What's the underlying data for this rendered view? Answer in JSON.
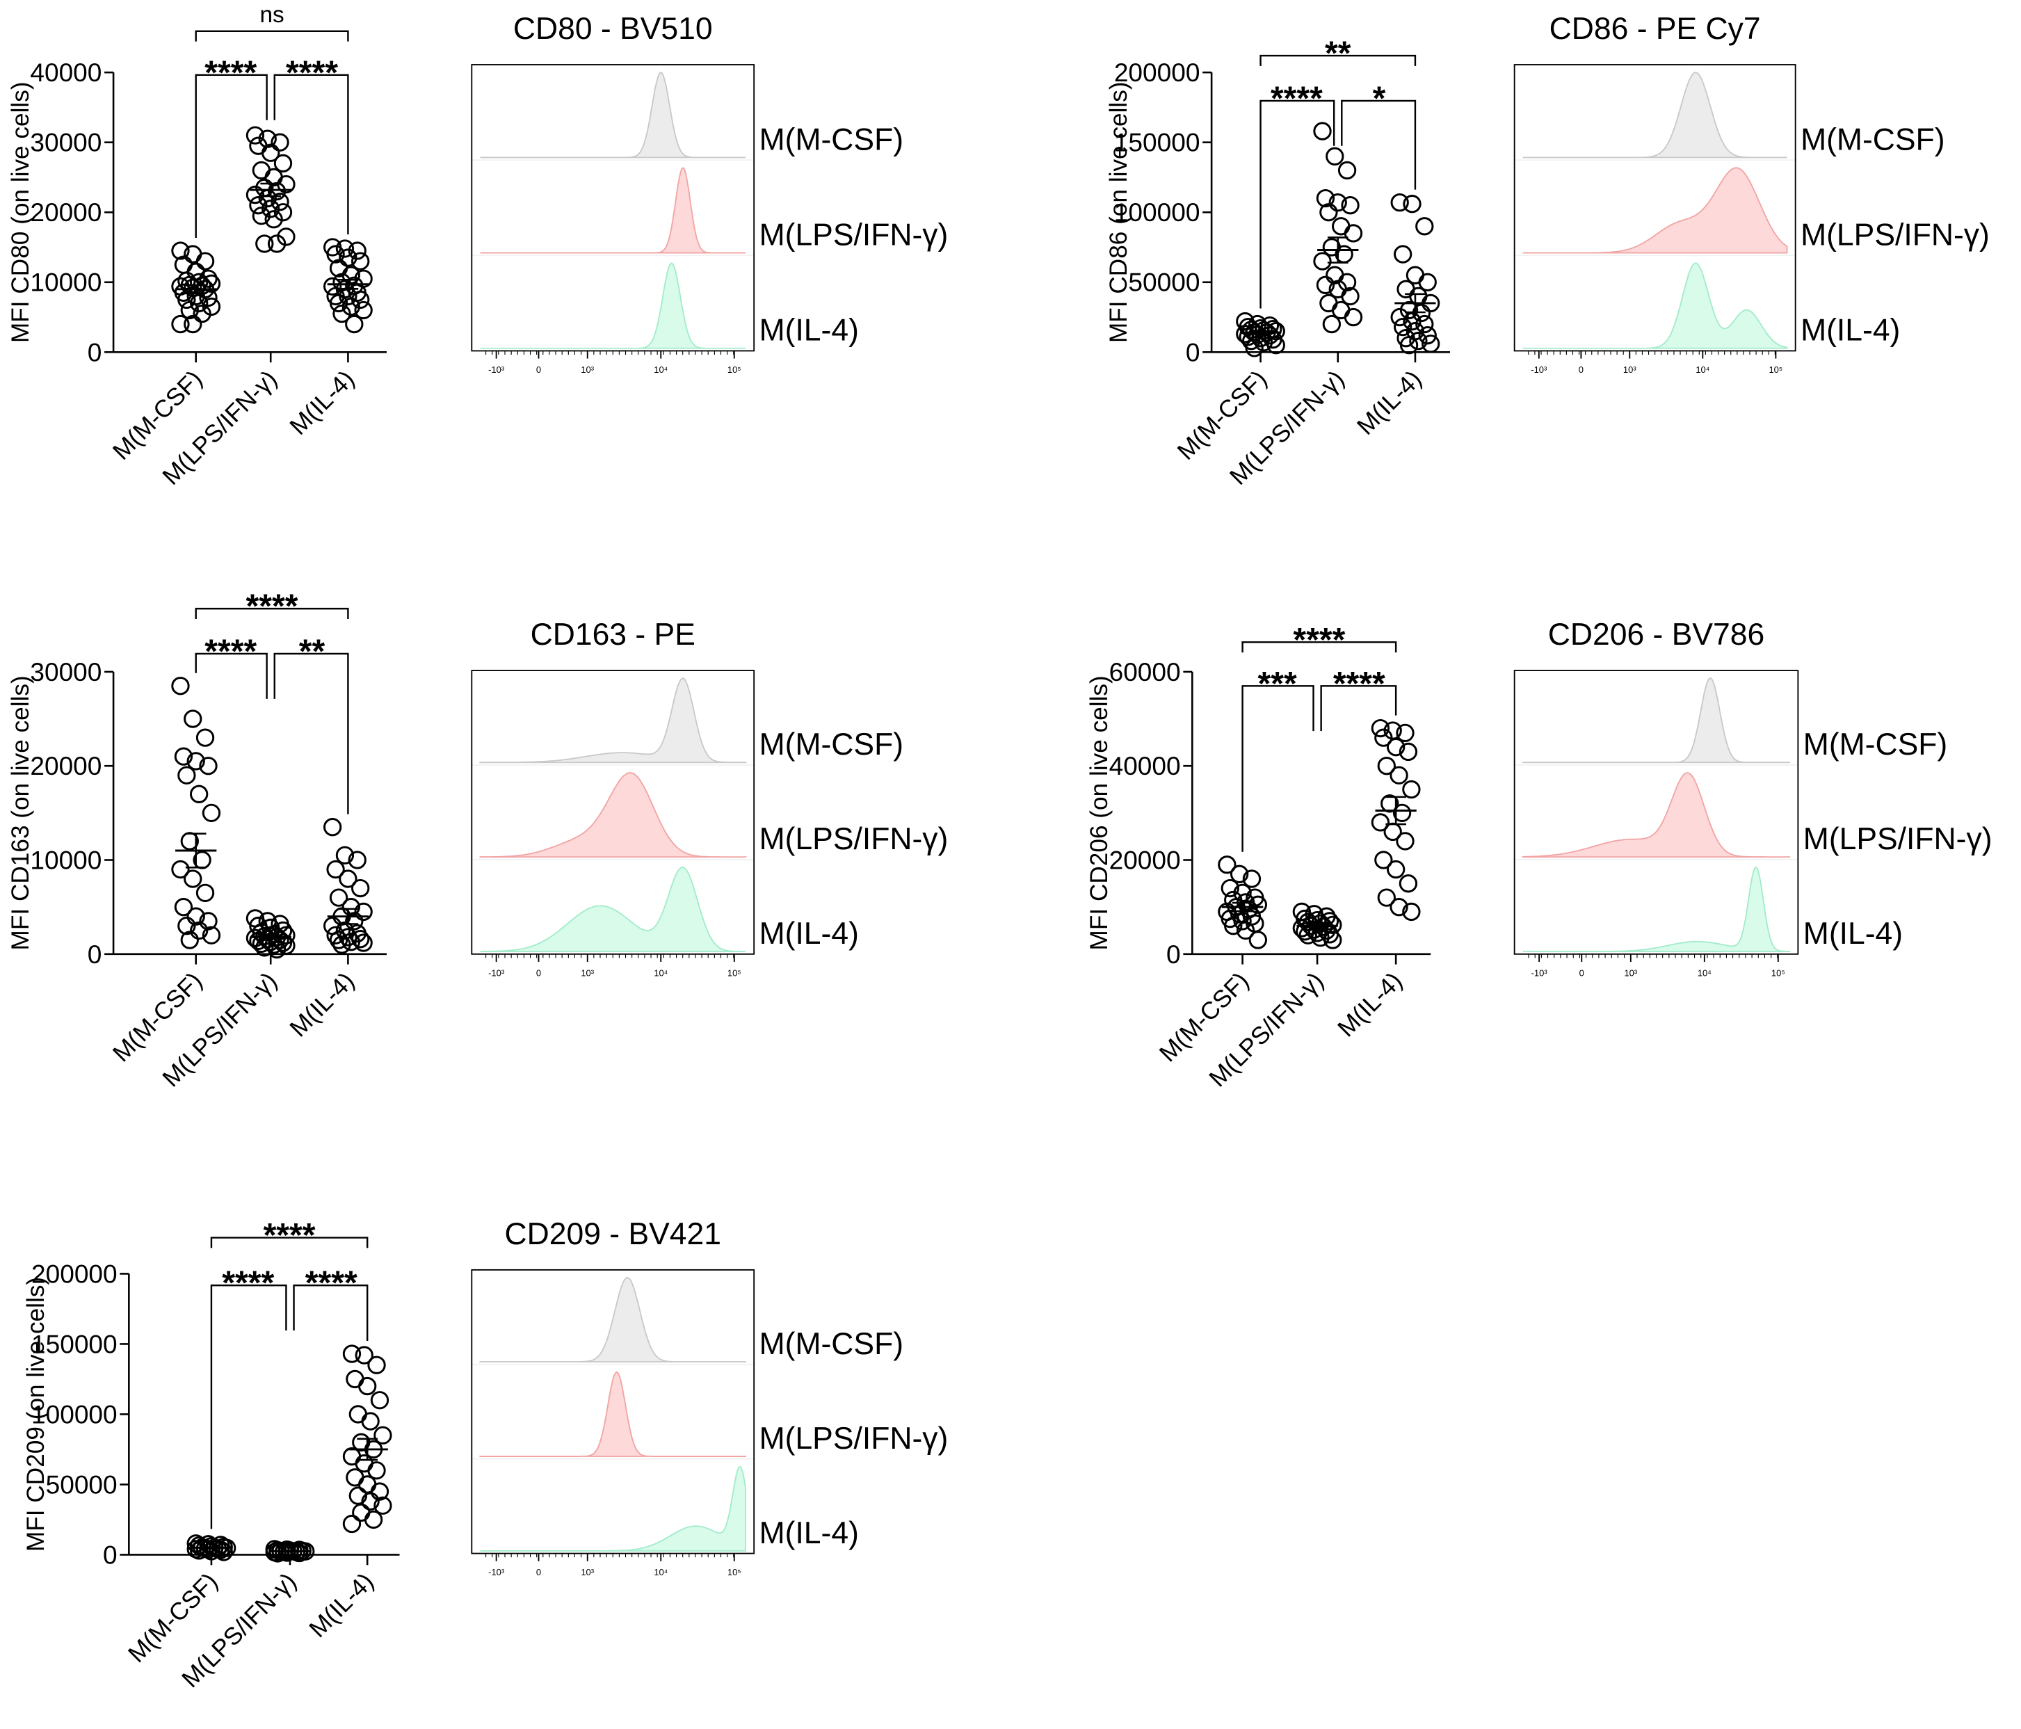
{
  "colors": {
    "mcsf_fill": "#ececec",
    "mcsf_line": "#c9c9c9",
    "lps_fill": "#fdd9d9",
    "lps_line": "#f2a5a5",
    "il4_fill": "#d8fbea",
    "il4_line": "#a3eccb",
    "ink": "#000000"
  },
  "chart_data": [
    {
      "type": "scatter",
      "ylabel": "MFI CD80 (on live cells)",
      "ylim": [
        0,
        40000
      ],
      "yticks": [
        0,
        10000,
        20000,
        30000,
        40000
      ],
      "categories": [
        "M(M-CSF)",
        "M(LPS/IFN-γ)",
        "M(IL-4)"
      ],
      "series": [
        {
          "values": [
            14500,
            14000,
            13000,
            12500,
            11500,
            10500,
            10200,
            10000,
            9800,
            9600,
            9500,
            9400,
            9200,
            9000,
            8500,
            8000,
            7800,
            7500,
            7000,
            6500,
            6000,
            5500,
            4000,
            4000
          ],
          "mean": 9000,
          "sem": 600
        },
        {
          "values": [
            31000,
            30500,
            30000,
            29500,
            28500,
            27000,
            26000,
            25000,
            24000,
            23500,
            23000,
            22500,
            22000,
            21500,
            21000,
            20500,
            20000,
            19500,
            19000,
            16500,
            15500,
            15500
          ],
          "mean": 23200,
          "sem": 900
        },
        {
          "values": [
            15000,
            14800,
            14500,
            14000,
            13500,
            13000,
            12000,
            11000,
            10500,
            10000,
            9500,
            9400,
            9000,
            8500,
            8000,
            8000,
            7500,
            7000,
            6500,
            6000,
            5500,
            4000
          ],
          "mean": 9700,
          "sem": 650
        }
      ],
      "comparisons": [
        {
          "pair": [
            0,
            2
          ],
          "label": "ns"
        },
        {
          "pair": [
            0,
            1
          ],
          "label": "****"
        },
        {
          "pair": [
            1,
            2
          ],
          "label": "****"
        }
      ]
    },
    {
      "type": "area",
      "title": "CD80 - BV510",
      "xscale": "biexponential",
      "xticks": [
        "-10³",
        "0",
        "10³",
        "10⁴",
        "10⁵"
      ],
      "rows": [
        {
          "label": "M(M-CSF)",
          "peaks": [
            {
              "at": 10000,
              "sd": 0.12,
              "h": 1
            }
          ]
        },
        {
          "label": "M(LPS/IFN-γ)",
          "peaks": [
            {
              "at": 20000,
              "sd": 0.1,
              "h": 1
            }
          ]
        },
        {
          "label": "M(IL-4)",
          "peaks": [
            {
              "at": 14000,
              "sd": 0.12,
              "h": 1
            }
          ]
        }
      ]
    },
    {
      "type": "scatter",
      "ylabel": "MFI CD86 (on live cells)",
      "ylim": [
        0,
        200000
      ],
      "yticks": [
        0,
        50000,
        100000,
        150000,
        200000
      ],
      "categories": [
        "M(M-CSF)",
        "M(LPS/IFN-γ)",
        "M(IL-4)"
      ],
      "series": [
        {
          "values": [
            22000,
            20000,
            19000,
            18000,
            17000,
            16500,
            16000,
            15500,
            15000,
            14000,
            14000,
            13000,
            12500,
            12000,
            11000,
            10000,
            9000,
            8000,
            7000,
            5000,
            3000
          ],
          "mean": 14000,
          "sem": 1000
        },
        {
          "values": [
            158000,
            140000,
            130000,
            110000,
            107000,
            105000,
            100000,
            90000,
            85000,
            75000,
            70000,
            65000,
            55000,
            50000,
            48000,
            45000,
            40000,
            35000,
            30000,
            25000,
            20000
          ],
          "mean": 73000,
          "sem": 9000
        },
        {
          "values": [
            107000,
            106000,
            90000,
            70000,
            55000,
            50000,
            45000,
            40000,
            35000,
            30000,
            28000,
            25000,
            22000,
            20000,
            18000,
            15000,
            12000,
            10000,
            8000,
            6000,
            5000
          ],
          "mean": 35000,
          "sem": 6500
        }
      ],
      "comparisons": [
        {
          "pair": [
            0,
            2
          ],
          "label": "**"
        },
        {
          "pair": [
            0,
            1
          ],
          "label": "****"
        },
        {
          "pair": [
            1,
            2
          ],
          "label": "*"
        }
      ]
    },
    {
      "type": "area",
      "title": "CD86 - PE Cy7",
      "xscale": "biexponential",
      "xticks": [
        "-10³",
        "0",
        "10³",
        "10⁴",
        "10⁵"
      ],
      "rows": [
        {
          "label": "M(M-CSF)",
          "peaks": [
            {
              "at": 8000,
              "sd": 0.2,
              "h": 1
            }
          ]
        },
        {
          "label": "M(LPS/IFN-γ)",
          "peaks": [
            {
              "at": 30000,
              "sd": 0.3,
              "h": 0.85
            },
            {
              "at": 5000,
              "sd": 0.35,
              "h": 0.3
            }
          ]
        },
        {
          "label": "M(IL-4)",
          "peaks": [
            {
              "at": 8000,
              "sd": 0.18,
              "h": 1
            },
            {
              "at": 40000,
              "sd": 0.2,
              "h": 0.45
            }
          ]
        }
      ]
    },
    {
      "type": "scatter",
      "ylabel": "MFI CD163 (on live cells)",
      "ylim": [
        0,
        30000
      ],
      "yticks": [
        0,
        10000,
        20000,
        30000
      ],
      "categories": [
        "M(M-CSF)",
        "M(LPS/IFN-γ)",
        "M(IL-4)"
      ],
      "series": [
        {
          "values": [
            28500,
            25000,
            23000,
            21000,
            20500,
            20000,
            19000,
            17000,
            15000,
            12000,
            10000,
            9000,
            8000,
            6500,
            5000,
            4000,
            3500,
            3000,
            2500,
            2000,
            1500
          ],
          "mean": 11000,
          "sem": 1800
        },
        {
          "values": [
            3800,
            3500,
            3200,
            3000,
            2800,
            2500,
            2300,
            2100,
            2000,
            1900,
            1800,
            1700,
            1600,
            1500,
            1400,
            1300,
            1200,
            1100,
            1000,
            900,
            700,
            500
          ],
          "mean": 1800,
          "sem": 200
        },
        {
          "values": [
            13500,
            10500,
            10000,
            9000,
            8000,
            7000,
            6000,
            5000,
            4500,
            4000,
            3500,
            3000,
            2500,
            2200,
            2000,
            1800,
            1600,
            1500,
            1300,
            1200,
            1000
          ],
          "mean": 4000,
          "sem": 800
        }
      ],
      "comparisons": [
        {
          "pair": [
            0,
            2
          ],
          "label": "****"
        },
        {
          "pair": [
            0,
            1
          ],
          "label": "****"
        },
        {
          "pair": [
            1,
            2
          ],
          "label": "**"
        }
      ]
    },
    {
      "type": "area",
      "title": "CD163 - PE",
      "xscale": "biexponential",
      "xticks": [
        "-10³",
        "0",
        "10³",
        "10⁴",
        "10⁵"
      ],
      "rows": [
        {
          "label": "M(M-CSF)",
          "peaks": [
            {
              "at": 20000,
              "sd": 0.15,
              "h": 1
            },
            {
              "at": 3000,
              "sd": 0.5,
              "h": 0.12
            }
          ]
        },
        {
          "label": "M(LPS/IFN-γ)",
          "peaks": [
            {
              "at": 4000,
              "sd": 0.3,
              "h": 0.95
            },
            {
              "at": 800,
              "sd": 0.4,
              "h": 0.2
            }
          ]
        },
        {
          "label": "M(IL-4)",
          "peaks": [
            {
              "at": 20000,
              "sd": 0.2,
              "h": 0.9
            },
            {
              "at": 1500,
              "sd": 0.45,
              "h": 0.5
            }
          ]
        }
      ]
    },
    {
      "type": "scatter",
      "ylabel": "MFI CD206 (on live cells)",
      "ylim": [
        0,
        60000
      ],
      "yticks": [
        0,
        20000,
        40000,
        60000
      ],
      "categories": [
        "M(M-CSF)",
        "M(LPS/IFN-γ)",
        "M(IL-4)"
      ],
      "series": [
        {
          "values": [
            19000,
            17000,
            16000,
            14000,
            13000,
            12000,
            11500,
            11000,
            10500,
            10000,
            9500,
            9000,
            8500,
            8000,
            7500,
            7000,
            6500,
            6000,
            5000,
            3000
          ],
          "mean": 10000,
          "sem": 900
        },
        {
          "values": [
            9000,
            8500,
            8000,
            7500,
            7200,
            7000,
            6800,
            6500,
            6200,
            6000,
            5800,
            5500,
            5200,
            5000,
            4800,
            4500,
            4200,
            4000,
            3500,
            3000
          ],
          "mean": 6000,
          "sem": 350
        },
        {
          "values": [
            48000,
            47500,
            47000,
            46000,
            44000,
            43000,
            40000,
            38000,
            35000,
            32000,
            30000,
            28000,
            26000,
            24000,
            20000,
            18000,
            15000,
            12000,
            10000,
            9000
          ],
          "mean": 30500,
          "sem": 2900
        }
      ],
      "comparisons": [
        {
          "pair": [
            0,
            2
          ],
          "label": "****"
        },
        {
          "pair": [
            0,
            1
          ],
          "label": "***"
        },
        {
          "pair": [
            1,
            2
          ],
          "label": "****"
        }
      ]
    },
    {
      "type": "area",
      "title": "CD206 - BV786",
      "xscale": "biexponential",
      "xticks": [
        "-10³",
        "0",
        "10³",
        "10⁴",
        "10⁵"
      ],
      "rows": [
        {
          "label": "M(M-CSF)",
          "peaks": [
            {
              "at": 12000,
              "sd": 0.13,
              "h": 1
            }
          ]
        },
        {
          "label": "M(LPS/IFN-γ)",
          "peaks": [
            {
              "at": 6000,
              "sd": 0.22,
              "h": 0.9
            },
            {
              "at": 1000,
              "sd": 0.5,
              "h": 0.2
            }
          ]
        },
        {
          "label": "M(IL-4)",
          "peaks": [
            {
              "at": 50000,
              "sd": 0.1,
              "h": 1
            },
            {
              "at": 8000,
              "sd": 0.4,
              "h": 0.12
            }
          ]
        }
      ]
    },
    {
      "type": "scatter",
      "ylabel": "MFI CD209 (on live cells)",
      "ylim": [
        0,
        200000
      ],
      "yticks": [
        0,
        50000,
        100000,
        150000,
        200000
      ],
      "categories": [
        "M(M-CSF)",
        "M(LPS/IFN-γ)",
        "M(IL-4)"
      ],
      "series": [
        {
          "values": [
            8000,
            7500,
            7000,
            6500,
            6000,
            5500,
            5200,
            5000,
            4800,
            4500,
            4200,
            4000,
            3800,
            3500,
            3000,
            2500,
            2000
          ],
          "mean": 5000,
          "sem": 400
        },
        {
          "values": [
            4000,
            3700,
            3500,
            3200,
            3000,
            2800,
            2600,
            2500,
            2400,
            2200,
            2000,
            1800,
            1500,
            1200,
            1000
          ],
          "mean": 2500,
          "sem": 200
        },
        {
          "values": [
            143000,
            142000,
            135000,
            125000,
            120000,
            110000,
            100000,
            95000,
            85000,
            80000,
            75000,
            70000,
            65000,
            60000,
            55000,
            50000,
            45000,
            42000,
            38000,
            35000,
            30000,
            25000,
            22000
          ],
          "mean": 75000,
          "sem": 7500
        }
      ],
      "comparisons": [
        {
          "pair": [
            0,
            2
          ],
          "label": "****"
        },
        {
          "pair": [
            0,
            1
          ],
          "label": "****"
        },
        {
          "pair": [
            1,
            2
          ],
          "label": "****"
        }
      ]
    },
    {
      "type": "area",
      "title": "CD209 - BV421",
      "xscale": "biexponential",
      "xticks": [
        "-10³",
        "0",
        "10³",
        "10⁴",
        "10⁵"
      ],
      "rows": [
        {
          "label": "M(M-CSF)",
          "peaks": [
            {
              "at": 3500,
              "sd": 0.17,
              "h": 1
            }
          ]
        },
        {
          "label": "M(LPS/IFN-γ)",
          "peaks": [
            {
              "at": 2500,
              "sd": 0.12,
              "h": 1
            }
          ]
        },
        {
          "label": "M(IL-4)",
          "peaks": [
            {
              "at": 120000,
              "sd": 0.1,
              "h": 0.95
            },
            {
              "at": 30000,
              "sd": 0.35,
              "h": 0.3
            }
          ]
        }
      ]
    }
  ]
}
